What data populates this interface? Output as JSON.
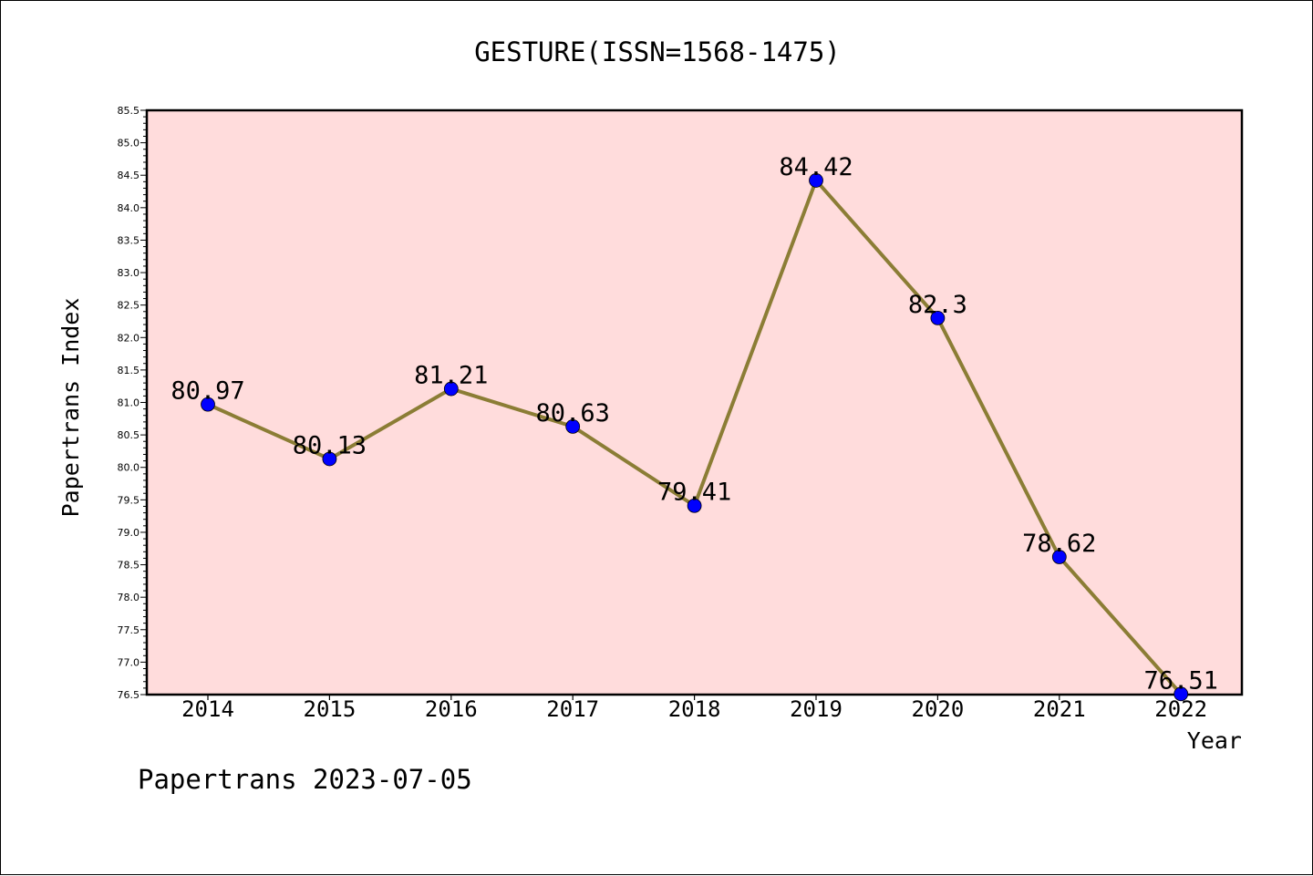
{
  "chart_data": {
    "type": "line",
    "title": "GESTURE(ISSN=1568-1475)",
    "xlabel": "Year",
    "ylabel": "Papertrans Index",
    "categories": [
      "2014",
      "2015",
      "2016",
      "2017",
      "2018",
      "2019",
      "2020",
      "2021",
      "2022"
    ],
    "series": [
      {
        "values": [
          80.97,
          80.13,
          81.21,
          80.63,
          79.41,
          84.42,
          82.3,
          78.62,
          76.51
        ]
      }
    ],
    "data_labels": [
      "80.97",
      "80.13",
      "81.21",
      "80.63",
      "79.41",
      "84.42",
      "82.3",
      "78.62",
      "76.51"
    ],
    "ylim": [
      76.5,
      85.5
    ],
    "yticks": [
      "76.5",
      "77.0",
      "77.5",
      "78.0",
      "78.5",
      "79.0",
      "79.5",
      "80.0",
      "80.5",
      "81.0",
      "81.5",
      "82.0",
      "82.5",
      "83.0",
      "83.5",
      "84.0",
      "84.5",
      "85.0",
      "85.5"
    ],
    "grid": false,
    "colors": {
      "plot_background": "#ffdcdc",
      "line": "#8b7d35",
      "marker": "#0000ff"
    }
  },
  "footer": {
    "text": "Papertrans 2023-07-05"
  }
}
